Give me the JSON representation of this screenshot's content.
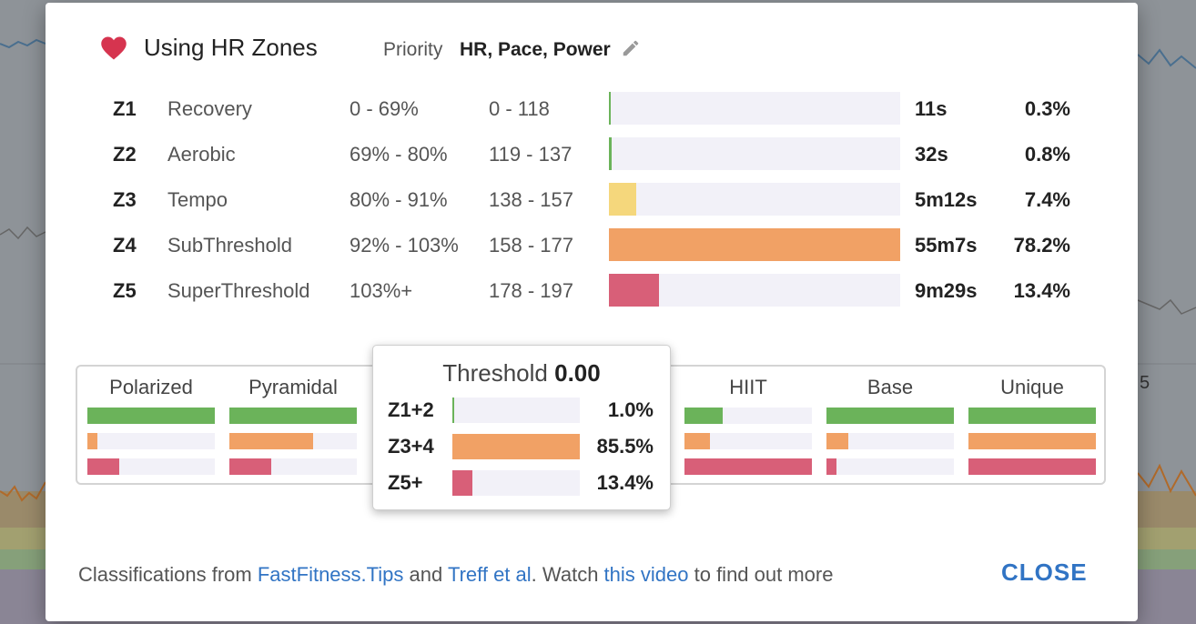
{
  "background": {
    "edge_labels": [
      "5"
    ]
  },
  "header": {
    "icon": "heart-icon",
    "title": "Using HR Zones",
    "priority_label": "Priority",
    "priority_value": "HR, Pace, Power",
    "edit_icon": "pencil-icon"
  },
  "colors": {
    "z1": "#6bb35a",
    "z2": "#6bb35a",
    "z3": "#f5d77c",
    "z4": "#f1a165",
    "z5": "#d85f78",
    "green": "#6bb35a",
    "orange": "#f1a165",
    "red": "#d85f78",
    "heart": "#d6344f",
    "link": "#3174c4"
  },
  "zones": [
    {
      "id": "Z1",
      "name": "Recovery",
      "pct_range": "0 - 69%",
      "bpm_range": "0 - 118",
      "time": "11s",
      "share": "0.3%",
      "fill": 0.003,
      "color": "#6bb35a"
    },
    {
      "id": "Z2",
      "name": "Aerobic",
      "pct_range": "69% - 80%",
      "bpm_range": "119 - 137",
      "time": "32s",
      "share": "0.8%",
      "fill": 0.008,
      "color": "#6bb35a"
    },
    {
      "id": "Z3",
      "name": "Tempo",
      "pct_range": "80% - 91%",
      "bpm_range": "138 - 157",
      "time": "5m12s",
      "share": "7.4%",
      "fill": 0.095,
      "color": "#f5d77c"
    },
    {
      "id": "Z4",
      "name": "SubThreshold",
      "pct_range": "92% - 103%",
      "bpm_range": "158 - 177",
      "time": "55m7s",
      "share": "78.2%",
      "fill": 1.0,
      "color": "#f1a165"
    },
    {
      "id": "Z5",
      "name": "SuperThreshold",
      "pct_range": "103%+",
      "bpm_range": "178 - 197",
      "time": "9m29s",
      "share": "13.4%",
      "fill": 0.171,
      "color": "#d85f78"
    }
  ],
  "classifications": [
    {
      "label": "Polarized",
      "fills": [
        1.0,
        0.08,
        0.25
      ]
    },
    {
      "label": "Pyramidal",
      "fills": [
        1.0,
        0.66,
        0.33
      ]
    },
    {
      "label": "Threshold",
      "fills": [
        0.0,
        0.0,
        0.0
      ]
    },
    {
      "label": "",
      "fills": [
        0.0,
        0.0,
        0.0
      ]
    },
    {
      "label": "HIIT",
      "fills": [
        0.3,
        0.2,
        1.0
      ]
    },
    {
      "label": "Base",
      "fills": [
        1.0,
        0.17,
        0.08
      ]
    },
    {
      "label": "Unique",
      "fills": [
        1.0,
        1.0,
        1.0
      ]
    }
  ],
  "tooltip": {
    "title": "Threshold",
    "score": "0.00",
    "rows": [
      {
        "label": "Z1+2",
        "value": "1.0%",
        "fill": 0.012,
        "color": "#6bb35a"
      },
      {
        "label": "Z3+4",
        "value": "85.5%",
        "fill": 1.0,
        "color": "#f1a165"
      },
      {
        "label": "Z5+",
        "value": "13.4%",
        "fill": 0.157,
        "color": "#d85f78"
      }
    ]
  },
  "footer": {
    "prefix": "Classifications from ",
    "link1": "FastFitness.Tips",
    "mid1": " and ",
    "link2": "Treff et al",
    "mid2": ". Watch ",
    "link3": "this video",
    "suffix": " to find out more"
  },
  "close_label": "CLOSE"
}
